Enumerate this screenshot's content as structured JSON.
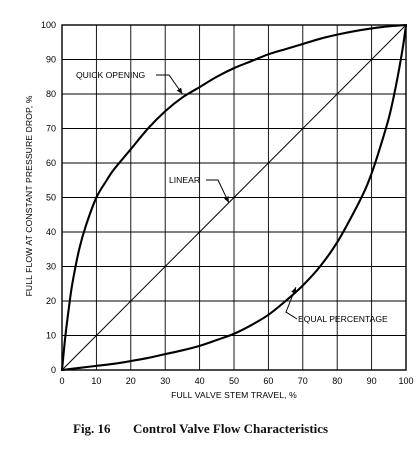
{
  "chart_data": {
    "type": "line",
    "xlabel": "FULL VALVE STEM TRAVEL, %",
    "ylabel": "FULL FLOW AT CONSTANT PRESSURE DROP, %",
    "xlim": [
      0,
      100
    ],
    "ylim": [
      0,
      100
    ],
    "x_ticks": [
      0,
      10,
      20,
      30,
      40,
      50,
      60,
      70,
      80,
      90,
      100
    ],
    "y_ticks": [
      0,
      10,
      20,
      30,
      40,
      50,
      60,
      70,
      80,
      90,
      100
    ],
    "grid": true,
    "caption": {
      "number": "Fig. 16",
      "title": "Control Valve Flow Characteristics"
    },
    "series": [
      {
        "name": "QUICK OPENING",
        "x": [
          0,
          1,
          2,
          3,
          5,
          7,
          10,
          13,
          15,
          20,
          25,
          30,
          35,
          40,
          45,
          50,
          55,
          60,
          65,
          70,
          75,
          80,
          85,
          90,
          95,
          100
        ],
        "y": [
          0,
          10,
          18,
          25,
          35,
          42,
          50,
          55,
          58,
          64,
          70,
          75,
          79,
          82,
          85,
          87.5,
          89.5,
          91.5,
          93,
          94.5,
          96,
          97.2,
          98.2,
          99,
          99.6,
          100
        ]
      },
      {
        "name": "LINEAR",
        "x": [
          0,
          100
        ],
        "y": [
          0,
          100
        ]
      },
      {
        "name": "EQUAL PERCENTAGE",
        "x": [
          0,
          5,
          10,
          15,
          20,
          25,
          30,
          35,
          40,
          45,
          50,
          55,
          60,
          65,
          70,
          75,
          80,
          85,
          88,
          90,
          92,
          95,
          97,
          99,
          100
        ],
        "y": [
          0,
          0.6,
          1.2,
          1.8,
          2.6,
          3.5,
          4.6,
          5.7,
          7,
          8.7,
          10.5,
          13,
          16,
          20,
          24.5,
          30,
          37,
          46,
          52,
          57,
          63,
          73,
          82,
          93,
          100
        ]
      }
    ],
    "annotations": [
      {
        "text": "QUICK OPENING",
        "series": "QUICK OPENING",
        "arrow_to": [
          35,
          80
        ]
      },
      {
        "text": "LINEAR",
        "series": "LINEAR",
        "arrow_to": [
          48.5,
          48.5
        ]
      },
      {
        "text": "EQUAL PERCENTAGE",
        "series": "EQUAL PERCENTAGE",
        "arrow_to": [
          68,
          24
        ]
      }
    ]
  }
}
